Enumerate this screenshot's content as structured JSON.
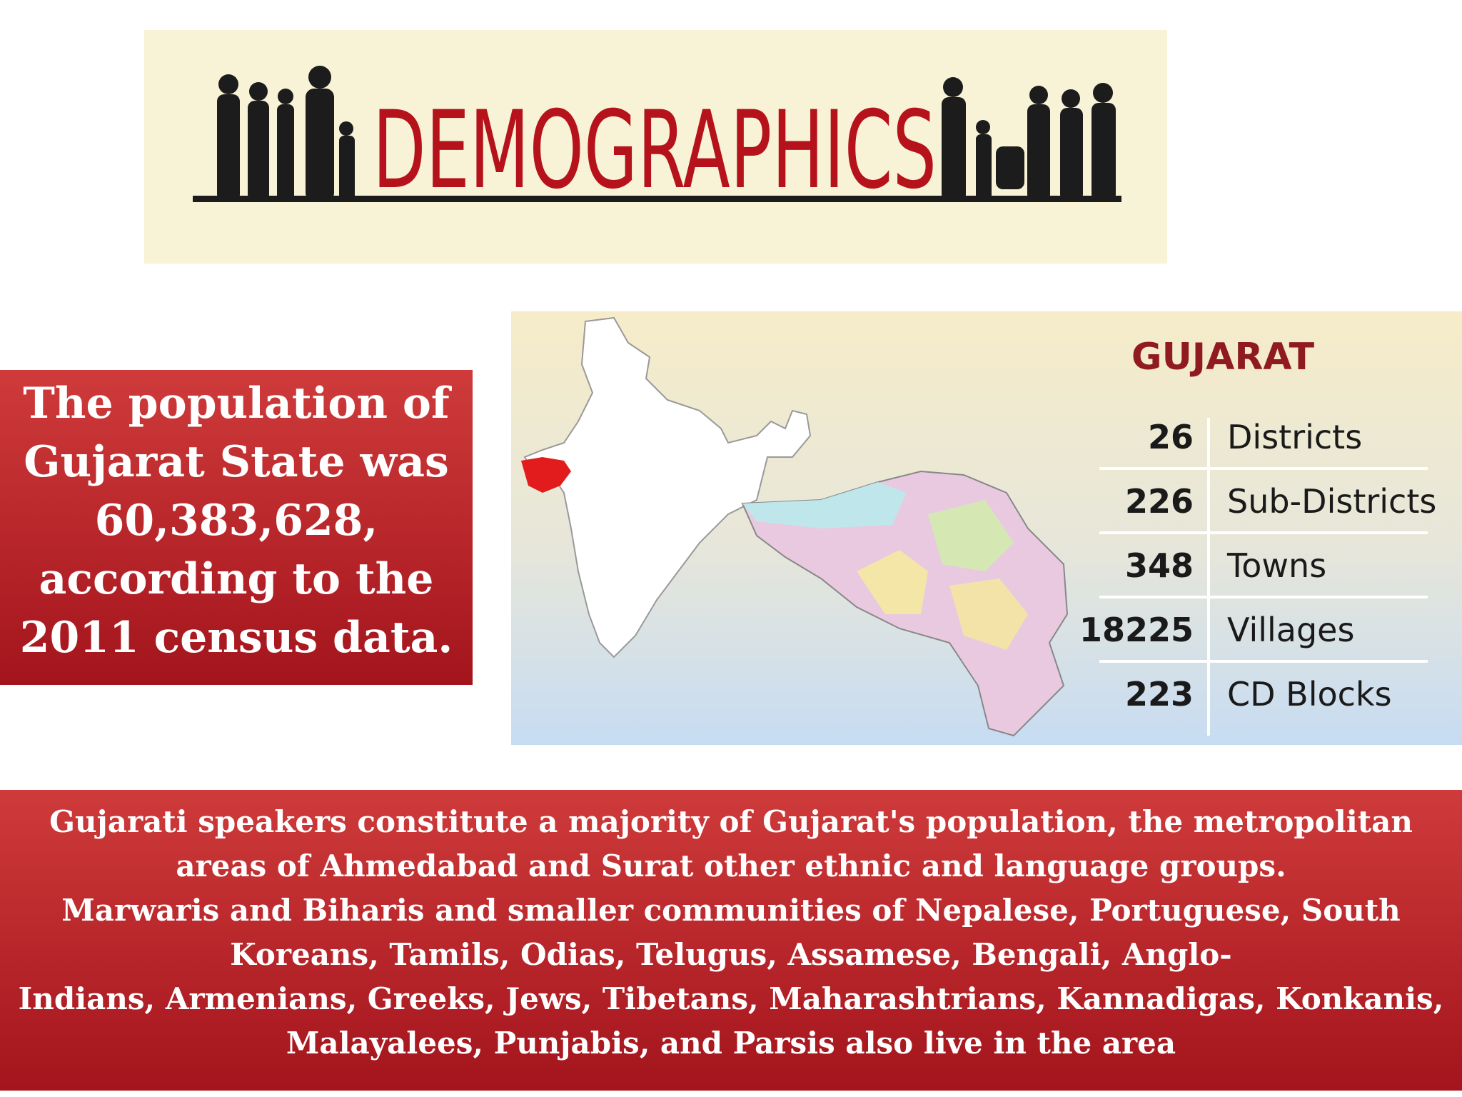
{
  "banner": {
    "title": "DEMOGRAPHICS"
  },
  "population_box": {
    "lines": [
      "The population of",
      "Gujarat State was",
      "60,383,628,",
      "according to the",
      "2011 census data."
    ]
  },
  "map_card": {
    "title": "GUJARAT",
    "rows": [
      {
        "number": 26,
        "label": "Districts"
      },
      {
        "number": 226,
        "label": "Sub-Districts"
      },
      {
        "number": 348,
        "label": "Towns"
      },
      {
        "number": 18225,
        "label": "Villages"
      },
      {
        "number": 223,
        "label": "CD Blocks"
      }
    ]
  },
  "footer_box": {
    "lines": [
      "Gujarati speakers constitute a majority of Gujarat's population, the metropolitan",
      "areas of Ahmedabad and Surat other ethnic and language groups.",
      "Marwaris and Biharis and smaller communities of Nepalese, Portuguese, South",
      "Koreans, Tamils, Odias, Telugus, Assamese, Bengali, Anglo-",
      "Indians, Armenians, Greeks, Jews, Tibetans, Maharashtrians, Kannadigas, Konkanis,",
      "Malayalees, Punjabis, and Parsis also live in the area"
    ]
  }
}
